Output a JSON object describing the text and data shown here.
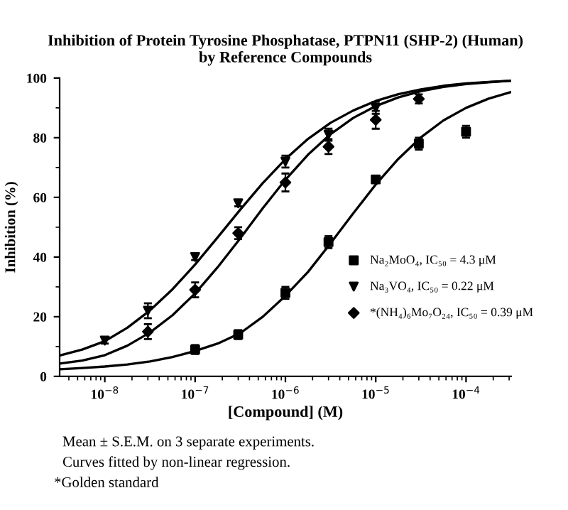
{
  "chart_data": {
    "type": "scatter",
    "title": "Inhibition of Protein Tyrosine Phosphatase, PTPN11 (SHP-2) (Human)\nby Reference Compounds",
    "xlabel": "[Compound] (M)",
    "ylabel": "Inhibition (%)",
    "log": "x",
    "xlim": [
      3.162e-09,
      0.0003162
    ],
    "xticks": [
      {
        "value": 1e-08,
        "label": "10$^{−8}$"
      },
      {
        "value": 1e-07,
        "label": "10$^{−7}$"
      },
      {
        "value": 1e-06,
        "label": "10$^{−6}$"
      },
      {
        "value": 1e-05,
        "label": "10$^{−5}$"
      },
      {
        "value": 0.0001,
        "label": "10$^{−4}$"
      }
    ],
    "ylim": [
      0,
      100
    ],
    "yticks": [
      0,
      20,
      40,
      60,
      80,
      100
    ],
    "grid": false,
    "legend": "right",
    "annotations": [
      "Mean ± S.E.M. on 3 separate experiments.",
      "Curves fitted by non-linear regression.",
      "*Golden standard"
    ],
    "series": [
      {
        "name": "Na₂MoO₄, IC₅₀ = 4.3 μM",
        "marker": "square",
        "color": "#000000",
        "x": [
          1e-07,
          3e-07,
          1e-06,
          3e-06,
          1e-05,
          3e-05,
          0.0001
        ],
        "values": [
          9,
          14,
          28,
          45,
          66,
          78,
          82
        ],
        "errors": [
          1.5,
          1.5,
          2,
          2,
          1,
          2,
          2
        ]
      },
      {
        "name": "Na₃VO₄, IC₅₀ = 0.22 μM",
        "marker": "triangle",
        "color": "#000000",
        "x": [
          1e-08,
          3e-08,
          1e-07,
          3e-07,
          1e-06,
          3e-06,
          1e-05
        ],
        "values": [
          12,
          22,
          40,
          58,
          72,
          81,
          90
        ],
        "errors": [
          1,
          2.5,
          1,
          1,
          2,
          2,
          2
        ]
      },
      {
        "name": "*(NH₄)₆Mo₇O₂₄, IC₅₀ = 0.39 μM",
        "marker": "diamond",
        "color": "#000000",
        "x": [
          3e-08,
          1e-07,
          3e-07,
          1e-06,
          3e-06,
          1e-05,
          3e-05
        ],
        "values": [
          15,
          29,
          48,
          65,
          77,
          86,
          93
        ],
        "errors": [
          2.5,
          2.5,
          2,
          3,
          2.5,
          3,
          1.5
        ]
      },
      {
        "type": "line",
        "color": "#000000",
        "x": [
          3.162e-09,
          5.623e-09,
          1e-08,
          1.778e-08,
          3.162e-08,
          5.623e-08,
          1e-07,
          1.778e-07,
          3.162e-07,
          5.623e-07,
          1e-06,
          1.778e-06,
          3.162e-06,
          5.623e-06,
          1e-05,
          1.778e-05,
          3.162e-05,
          5.623e-05,
          0.0001,
          0.0001778,
          0.0003162
        ],
        "values": [
          2.4,
          2.8,
          3.3,
          4,
          5,
          6.5,
          8.5,
          11,
          14.5,
          20,
          27,
          35,
          44.6,
          54.6,
          64.3,
          72.9,
          80.1,
          85.8,
          90,
          93.1,
          95.3
        ]
      },
      {
        "type": "line",
        "color": "#000000",
        "x": [
          3.162e-09,
          5.623e-09,
          1e-08,
          1.778e-08,
          3.162e-08,
          5.623e-08,
          1e-07,
          1.778e-07,
          3.162e-07,
          5.623e-07,
          1e-06,
          1.778e-06,
          3.162e-06,
          5.623e-06,
          1e-05,
          1.778e-05,
          3.162e-05,
          5.623e-05,
          0.0001,
          0.0001778,
          0.0003162
        ],
        "values": [
          7,
          9,
          11.8,
          16.3,
          22.1,
          29.2,
          37.5,
          46.6,
          55.9,
          64.8,
          72.8,
          79.6,
          85,
          89.1,
          92.3,
          94.6,
          96.2,
          97.4,
          98.2,
          98.7,
          99.1
        ]
      },
      {
        "type": "line",
        "color": "#000000",
        "x": [
          3.162e-09,
          5.623e-09,
          1e-08,
          1.778e-08,
          3.162e-08,
          5.623e-08,
          1e-07,
          1.778e-07,
          3.162e-07,
          5.623e-07,
          1e-06,
          1.778e-06,
          3.162e-06,
          5.623e-06,
          1e-05,
          1.778e-05,
          3.162e-05,
          5.623e-05,
          0.0001,
          0.0001778,
          0.0003162
        ],
        "values": [
          4.3,
          5.3,
          7.1,
          10.3,
          14.7,
          20.5,
          27.8,
          36.6,
          46.3,
          56.4,
          65.9,
          74.3,
          81.2,
          86.6,
          90.6,
          93.5,
          95.6,
          97,
          98,
          98.6,
          99.1
        ]
      }
    ]
  }
}
